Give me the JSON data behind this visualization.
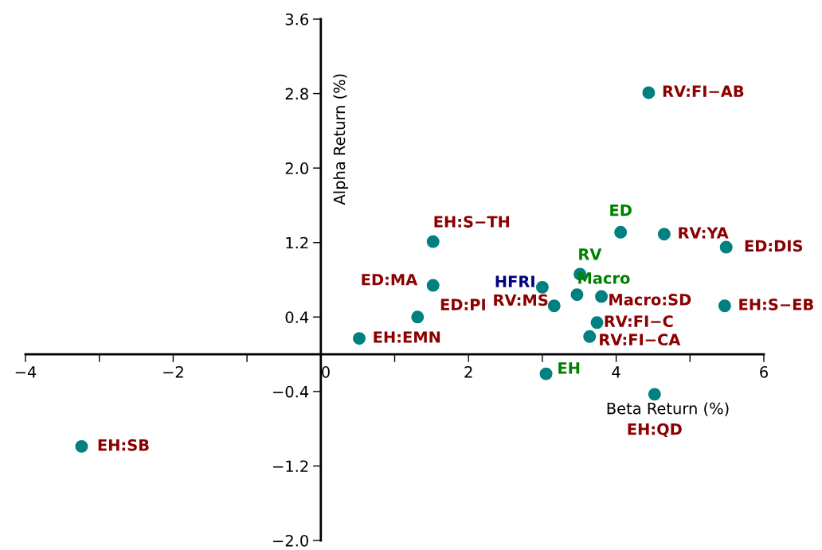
{
  "chart_data": {
    "type": "scatter",
    "xlabel": "Beta Return (%)",
    "ylabel": "Alpha Return (%)",
    "marker": "circle",
    "grid": false,
    "xlim": [
      -4,
      6
    ],
    "ylim": [
      -2.0,
      3.6
    ],
    "xticks": [
      {
        "value": -4,
        "label": "−4"
      },
      {
        "value": -3,
        "label": null
      },
      {
        "value": -2,
        "label": "−2"
      },
      {
        "value": -1,
        "label": null
      },
      {
        "value": 0,
        "label": "0"
      },
      {
        "value": 1,
        "label": null
      },
      {
        "value": 2,
        "label": "2"
      },
      {
        "value": 3,
        "label": null
      },
      {
        "value": 4,
        "label": "4"
      },
      {
        "value": 5,
        "label": null
      },
      {
        "value": 6,
        "label": "6"
      }
    ],
    "yticks": [
      {
        "value": -2.0,
        "label": "−2.0"
      },
      {
        "value": -1.2,
        "label": "−1.2"
      },
      {
        "value": -0.4,
        "label": "−0.4"
      },
      {
        "value": 0.4,
        "label": "0.4"
      },
      {
        "value": 1.2,
        "label": "1.2"
      },
      {
        "value": 2.0,
        "label": "2.0"
      },
      {
        "value": 2.8,
        "label": "2.8"
      },
      {
        "value": 3.6,
        "label": "3.6"
      }
    ],
    "series": [
      {
        "color": "#008080",
        "x": [
          4.44,
          4.65,
          5.49,
          1.52,
          1.52,
          3.16,
          3.8,
          5.47,
          1.31,
          3.74,
          3.64,
          0.52,
          4.52,
          -3.24
        ],
        "values": [
          2.81,
          1.29,
          1.15,
          1.21,
          0.74,
          0.52,
          0.62,
          0.52,
          0.4,
          0.34,
          0.19,
          0.17,
          -0.43,
          -0.99
        ],
        "value_labels": [
          "RV:FI−AB",
          "RV:YA",
          "ED:DIS",
          "EH:S−TH",
          "ED:MA",
          "RV:MS",
          "Macro:SD",
          "EH:S−EB",
          "ED:PI",
          "RV:FI−C",
          "RV:FI−CA",
          "EH:EMN",
          "EH:QD",
          "EH:SB"
        ]
      },
      {
        "color": "#008080",
        "x": [
          4.06,
          3.51,
          3.47,
          3.05
        ],
        "values": [
          1.31,
          0.86,
          0.64,
          -0.21
        ],
        "value_labels": [
          "ED",
          "RV",
          "Macro",
          "EH"
        ]
      },
      {
        "color": "#008080",
        "x": [
          3.0
        ],
        "values": [
          0.72
        ],
        "value_labels": [
          "HFRI"
        ]
      }
    ]
  }
}
